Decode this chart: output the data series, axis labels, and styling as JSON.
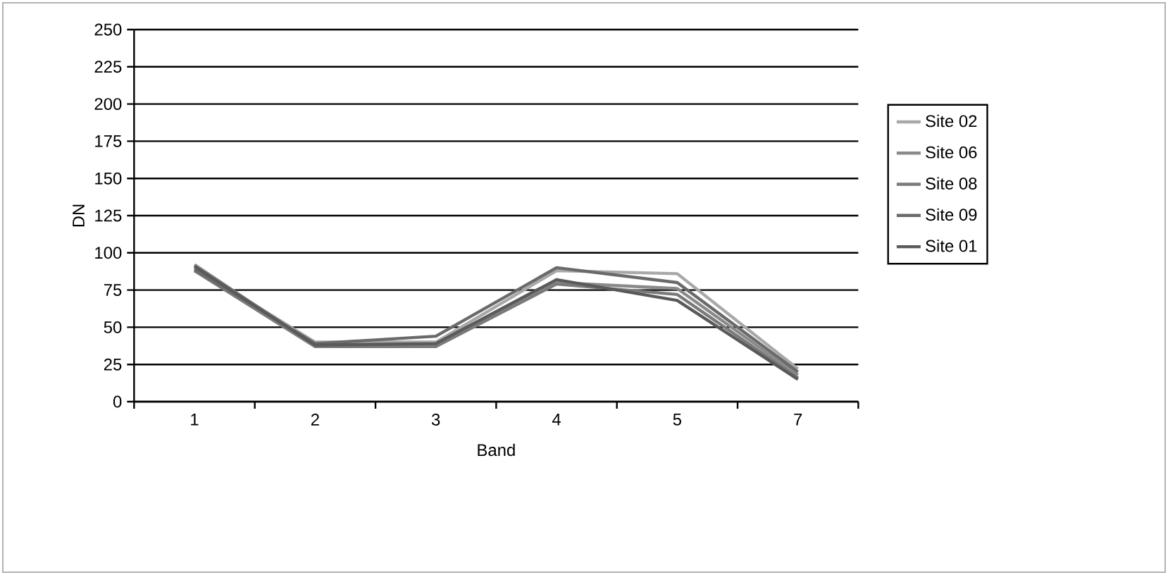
{
  "chart_data": {
    "type": "line",
    "xlabel": "Band",
    "ylabel": "DN",
    "categories": [
      "1",
      "2",
      "3",
      "4",
      "5",
      "7"
    ],
    "series": [
      {
        "name": "Site 02",
        "color": "#a8a8a8",
        "values": [
          90,
          40,
          40,
          88,
          86,
          22
        ]
      },
      {
        "name": "Site 06",
        "color": "#8a8a8a",
        "values": [
          92,
          38,
          38,
          80,
          76,
          18
        ]
      },
      {
        "name": "Site 08",
        "color": "#7a7a7a",
        "values": [
          88,
          37,
          37,
          79,
          72,
          16
        ]
      },
      {
        "name": "Site 09",
        "color": "#6a6a6a",
        "values": [
          89,
          39,
          44,
          90,
          80,
          20
        ]
      },
      {
        "name": "Site 01",
        "color": "#5a5a5a",
        "values": [
          91,
          38,
          39,
          82,
          68,
          15
        ]
      }
    ],
    "ylim": [
      0,
      250
    ],
    "yticks": [
      0,
      25,
      50,
      75,
      100,
      125,
      150,
      175,
      200,
      225,
      250
    ],
    "grid": "y",
    "legend": "right",
    "marker": "none",
    "line_style": "solid"
  }
}
